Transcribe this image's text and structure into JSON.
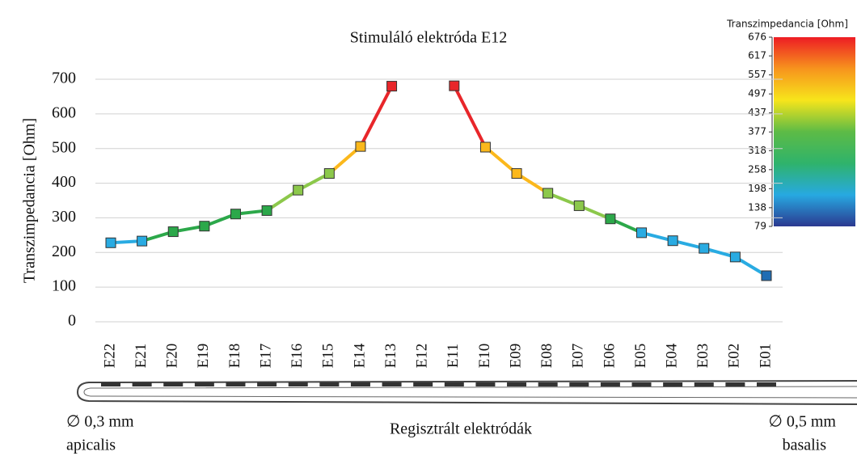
{
  "chart_data": {
    "type": "line",
    "title": "Stimuláló elektróda E12",
    "y_label": "Transzimpedancia [Ohm]",
    "x_label": "Regisztrált elektródák",
    "annotations": [
      "∅ 0,3 mm",
      "apicalis",
      "∅ 0,5 mm",
      "basalis"
    ],
    "categories": [
      "E22",
      "E21",
      "E20",
      "E19",
      "E18",
      "E17",
      "E16",
      "E15",
      "E14",
      "E13",
      "E12",
      "E11",
      "E10",
      "E09",
      "E08",
      "E07",
      "E06",
      "E05",
      "E04",
      "E03",
      "E02",
      "E01"
    ],
    "series": [
      {
        "name": "Transzimpedancia",
        "values": [
          228,
          233,
          260,
          276,
          311,
          321,
          380,
          428,
          506,
          680,
          null,
          681,
          504,
          428,
          371,
          335,
          297,
          257,
          234,
          212,
          187,
          133
        ],
        "colors": [
          "#29abe2",
          "#29abe2",
          "#2ca84a",
          "#2ca84a",
          "#2ca84a",
          "#2ca84a",
          "#8cc84b",
          "#8cc84b",
          "#fbb81c",
          "#e8262a",
          null,
          "#e8262a",
          "#fbb81c",
          "#fbb81c",
          "#8cc84b",
          "#8cc84b",
          "#2ca84a",
          "#29abe2",
          "#29abe2",
          "#29abe2",
          "#29abe2",
          "#1f6db3"
        ]
      }
    ],
    "ylim": [
      0,
      700
    ],
    "yticks": [
      0,
      100,
      200,
      300,
      400,
      500,
      600,
      700
    ],
    "grid": true,
    "colorbar": {
      "label": "Transzimpedancia [Ohm]",
      "lim": [
        79,
        676
      ],
      "ticks": [
        79,
        138,
        198,
        258,
        318,
        377,
        437,
        497,
        557,
        617,
        676
      ],
      "colors": [
        "#2b3990",
        "#27a9e1",
        "#2fb36b",
        "#5dbb46",
        "#f7e51b",
        "#f7941d",
        "#ed1c24"
      ]
    }
  }
}
